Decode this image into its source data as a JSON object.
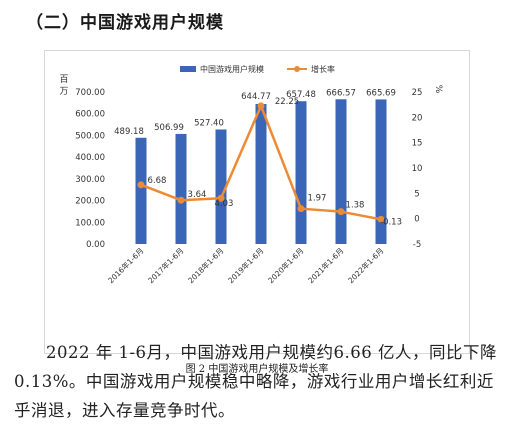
{
  "heading": "（二）中国游戏用户规模",
  "chart_data": {
    "type": "bar+line",
    "categories": [
      "2016年1-6月",
      "2017年1-6月",
      "2018年1-6月",
      "2019年1-6月",
      "2020年1-6月",
      "2021年1-6月",
      "2022年1-6月"
    ],
    "series": [
      {
        "name": "中国游戏用户规模",
        "type": "bar",
        "axis": "left",
        "values": [
          489.18,
          506.99,
          527.4,
          644.77,
          657.48,
          666.57,
          665.69
        ],
        "labels": [
          "489.18",
          "506.99",
          "527.40",
          "644.77",
          "657.48",
          "666.57",
          "665.69"
        ]
      },
      {
        "name": "增长率",
        "type": "line",
        "axis": "right",
        "values": [
          6.68,
          3.64,
          4.03,
          22.25,
          1.97,
          1.38,
          -0.13
        ],
        "labels": [
          "6.68",
          "3.64",
          "4.03",
          "22.25",
          "1.97",
          "1.38",
          "-0.13"
        ]
      }
    ],
    "ylabel_left": "百万",
    "ylabel_right": "%",
    "ylim_left": [
      0,
      700
    ],
    "ylim_right": [
      -5,
      25
    ],
    "yticks_left": [
      "0.00",
      "100.00",
      "200.00",
      "300.00",
      "400.00",
      "500.00",
      "600.00",
      "700.00"
    ],
    "yticks_right": [
      "-5",
      "0",
      "5",
      "10",
      "15",
      "20",
      "25"
    ],
    "legend_position": "top",
    "grid": false,
    "caption": "图 2  中国游戏用户规模及增长率"
  },
  "colors": {
    "bar": "#3b66b8",
    "line": "#ee8a33"
  },
  "paragraph": "2022 年 1-6月，中国游戏用户规模约6.66 亿人，同比下降 0.13%。中国游戏用户规模稳中略降，游戏行业用户增长红利近乎消退，进入存量竞争时代。"
}
